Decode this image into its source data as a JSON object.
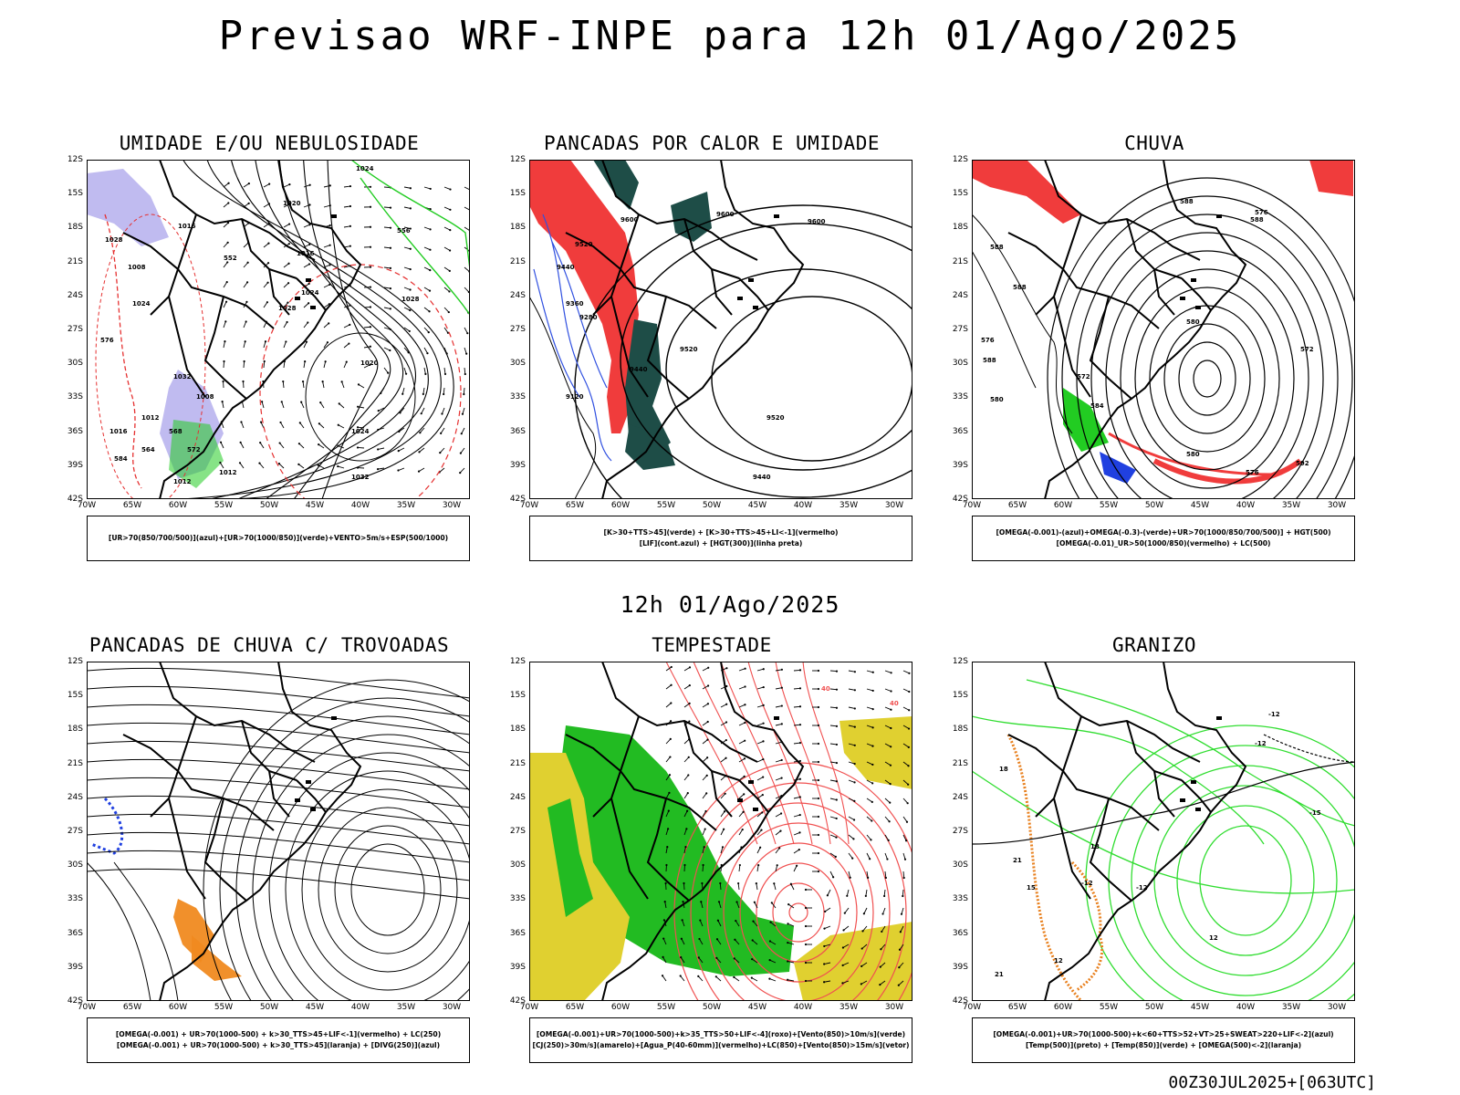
{
  "title": "Previsao WRF-INPE  para 12h 01/Ago/2025",
  "mid_time": "12h 01/Ago/2025",
  "run_stamp": "00Z30JUL2025+[063UTC]",
  "axes": {
    "lat": [
      "12S",
      "15S",
      "18S",
      "21S",
      "24S",
      "27S",
      "30S",
      "33S",
      "36S",
      "39S",
      "42S"
    ],
    "lon": [
      "70W",
      "65W",
      "60W",
      "55W",
      "50W",
      "45W",
      "40W",
      "35W",
      "30W"
    ]
  },
  "panels": [
    {
      "title": "UMIDADE E/OU NEBULOSIDADE",
      "legend": [
        "[UR>70(850/700/500)](azul)+[UR>70(1000/850)](verde)+VENTO>5m/s+ESP(500/1000)"
      ],
      "contour_labels": [
        "1024",
        "1020",
        "1016",
        "1016",
        "1024",
        "1028",
        "1028",
        "1020",
        "1024",
        "1032",
        "1032",
        "1008",
        "1012",
        "1012",
        "1028",
        "1024",
        "1016",
        "1012",
        "1008",
        "576",
        "584",
        "564",
        "568",
        "572",
        "556",
        "552"
      ],
      "colors": {
        "blue": "#b9b4ee",
        "green": "#22cc22",
        "red": "#e53030"
      }
    },
    {
      "title": "PANCADAS POR CALOR E UMIDADE",
      "legend": [
        "[K>30+TTS>45](verde) + [K>30+TTS>45+LI<-1](vermelho)",
        "[LIF](cont.azul) + [HGT(300)](linha preta)"
      ],
      "contour_labels": [
        "9600",
        "9600",
        "9600",
        "9520",
        "9440",
        "9360",
        "9280",
        "9520",
        "9440",
        "9120",
        "9520",
        "9440"
      ],
      "colors": {
        "green": "#1e4d47",
        "red": "#f03c3c",
        "blue": "#3050e0"
      }
    },
    {
      "title": "CHUVA",
      "legend": [
        "[OMEGA(-0.001)-(azul)+OMEGA(-0.3)-(verde)+UR>70(1000/850/700/500)] + HGT(500)",
        "[OMEGA(-0.01)_UR>50(1000/850)(vermelho) + LC(500)"
      ],
      "contour_labels": [
        "588",
        "588",
        "588",
        "588",
        "580",
        "576",
        "572",
        "584",
        "580",
        "576",
        "592",
        "588",
        "580",
        "576",
        "572"
      ],
      "colors": {
        "red": "#f03c3c",
        "green": "#22cc22",
        "blue": "#2040e0"
      }
    },
    {
      "title": "PANCADAS DE CHUVA C/ TROVOADAS",
      "legend": [
        "[OMEGA(-0.001) + UR>70(1000-500) + k>30_TTS>45+LIF<-1](vermelho) + LC(250)",
        "[OMEGA(-0.001) + UR>70(1000-500) + k>30_TTS>45](laranja) + [DIVG(250)](azul)"
      ],
      "contour_labels": [],
      "colors": {
        "orange": "#f08a20",
        "blue": "#2040e0",
        "red": "#f03c3c"
      }
    },
    {
      "title": "TEMPESTADE",
      "legend": [
        "[OMEGA(-0.001)+UR>70(1000-500)+k>35_TTS>50+LIF<-4](roxo)+[Vento(850)>10m/s](verde)",
        "[CJ(250)>30m/s](amarelo)+[Agua_P(40-60mm)](vermelho)+LC(850)+[Vento(850)>15m/s](vetor)"
      ],
      "contour_labels": [
        "40",
        "40"
      ],
      "colors": {
        "green": "#22bb22",
        "yellow": "#e0d030",
        "red": "#f05050"
      }
    },
    {
      "title": "GRANIZO",
      "legend": [
        "[OMEGA(-0.001)+UR>70(1000-500)+k<60+TTS>52+VT>25+SWEAT>220+LIF<-2](azul)",
        "[Temp(500)](preto) + [Temp(850)](verde) + [OMEGA(500)<-2](laranja)"
      ],
      "contour_labels": [
        "-12",
        "-15",
        "-12",
        "-12",
        "-12",
        "12",
        "12",
        "18",
        "21",
        "15",
        "18",
        "21"
      ],
      "colors": {
        "green": "#30dd30",
        "orange": "#e8801e",
        "black": "#000000"
      }
    }
  ]
}
